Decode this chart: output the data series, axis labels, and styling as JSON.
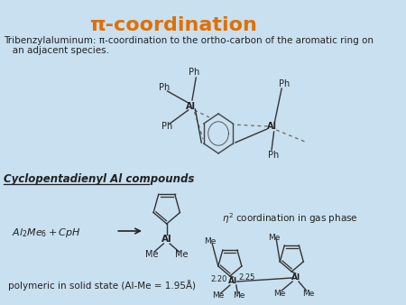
{
  "title": "π-coordination",
  "title_color": "#e07000",
  "bg_color": "#c8e0f0",
  "text_color": "#222222",
  "subtitle_line1": "Tribenzylaluminum: π-coordination to the ortho-carbon of the aromatic ring on",
  "subtitle_line2": "   an adjacent species.",
  "section_label": "Cyclopentadienyl Al compounds",
  "gas_phase_label": "$\\eta^2$ coordination in gas phase",
  "solid_state_label": "polymeric in solid state (Al-Me = 1.95Å)"
}
